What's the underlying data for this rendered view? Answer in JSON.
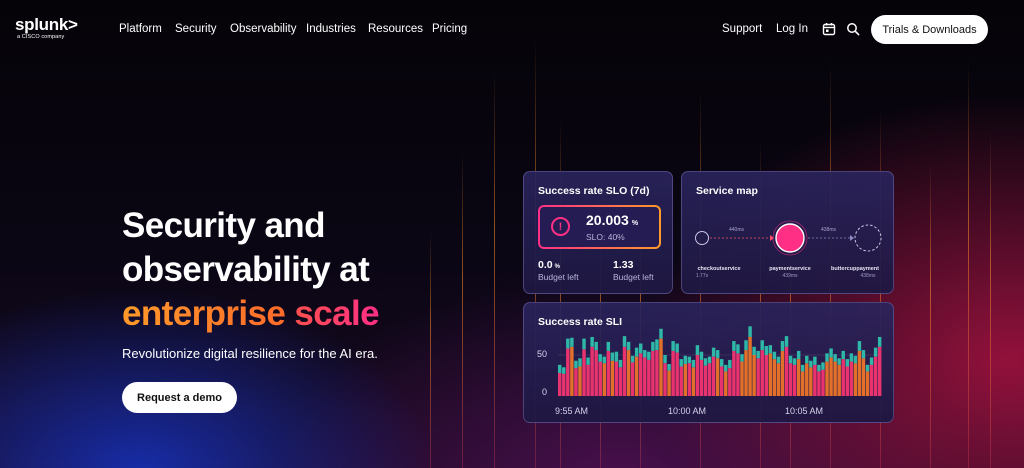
{
  "brand": {
    "logo_text": "splunk>",
    "logo_sub": "a CISCO company"
  },
  "nav": {
    "links": [
      "Platform",
      "Security",
      "Observability",
      "Industries",
      "Resources",
      "Pricing"
    ],
    "support": "Support",
    "login": "Log In",
    "icons": [
      "calendar-icon",
      "search-icon"
    ],
    "cta": "Trials & Downloads"
  },
  "hero": {
    "title_line1": "Security and",
    "title_line2": "observability at",
    "title_accent_a": "enterprise",
    "title_accent_b": "scale",
    "subtitle": "Revolutionize digital resilience for the AI era.",
    "cta": "Request a demo"
  },
  "slo_card": {
    "title": "Success rate SLO (7d)",
    "value": "20.003",
    "value_unit": "%",
    "target": "SLO: 40%",
    "budget_left_value": "0.0",
    "budget_left_unit": "%",
    "budget_left_label": "Budget left",
    "budget_ratio_value": "1.33",
    "budget_ratio_label": "Budget left"
  },
  "service_map": {
    "title": "Service map",
    "services": [
      {
        "name": "checkoutservice",
        "sub": "1.77s"
      },
      {
        "name": "paymentservice",
        "sub": "439ms"
      },
      {
        "name": "buttercuppayment",
        "sub": "438ms"
      }
    ],
    "latencies": [
      "440ms",
      "438ms"
    ]
  },
  "colors": {
    "accent_orange": "#ff9a2a",
    "accent_pink": "#ff2f86",
    "bar_teal": "#2fb7a8",
    "bar_pink": "#e8336e",
    "bar_orange": "#e2702a"
  },
  "chart_data": {
    "type": "bar",
    "title": "Success rate SLI",
    "ylim": [
      0,
      100
    ],
    "yticks": [
      0,
      50
    ],
    "xticks": [
      "9:55 AM",
      "10:00 AM",
      "10:05 AM"
    ],
    "series": [
      {
        "values": [
          28,
          27,
          58,
          60,
          34,
          36,
          57,
          38,
          60,
          56,
          42,
          40,
          55,
          43,
          42,
          35,
          60,
          56,
          41,
          48,
          52,
          47,
          44,
          55,
          56,
          70,
          40,
          31,
          55,
          53,
          36,
          39,
          40,
          35,
          50,
          44,
          37,
          40,
          48,
          46,
          36,
          30,
          34,
          55,
          52,
          42,
          56,
          72,
          50,
          46,
          56,
          50,
          52,
          45,
          40,
          55,
          60,
          40,
          38,
          45,
          30,
          40,
          35,
          38,
          30,
          32,
          42,
          47,
          42,
          38,
          45,
          36,
          42,
          40,
          55,
          46,
          30,
          38,
          48,
          60
        ]
      },
      {
        "values": [
          10,
          8,
          12,
          11,
          9,
          10,
          13,
          9,
          12,
          10,
          9,
          8,
          11,
          10,
          12,
          9,
          13,
          10,
          8,
          11,
          12,
          9,
          10,
          11,
          13,
          12,
          10,
          8,
          12,
          11,
          9,
          10,
          8,
          9,
          12,
          10,
          9,
          8,
          11,
          10,
          9,
          8,
          10,
          12,
          11,
          9,
          12,
          13,
          10,
          9,
          12,
          11,
          10,
          9,
          8,
          12,
          13,
          9,
          8,
          10,
          8,
          9,
          8,
          10,
          8,
          9,
          10,
          11,
          9,
          8,
          10,
          9,
          10,
          9,
          12,
          10,
          8,
          9,
          11,
          12
        ]
      }
    ]
  }
}
